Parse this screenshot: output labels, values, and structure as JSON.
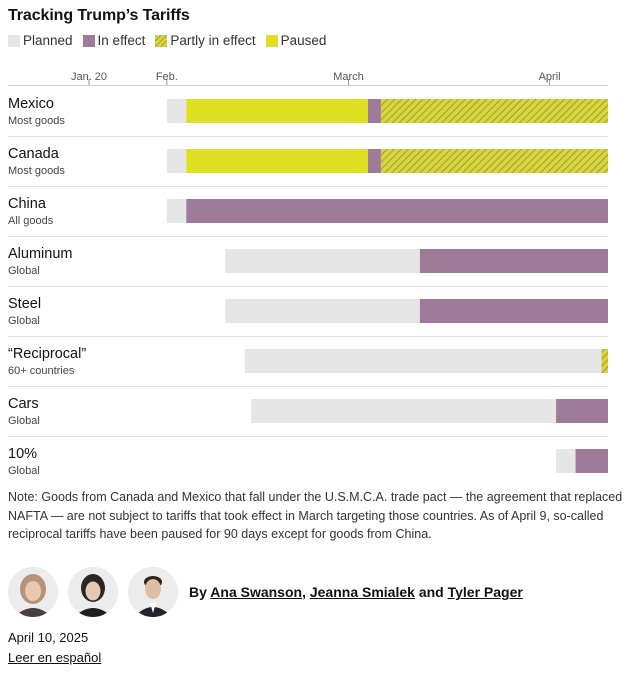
{
  "title": "Tracking Trump’s Tariffs",
  "legend": [
    {
      "label": "Planned",
      "key": "planned"
    },
    {
      "label": "In effect",
      "key": "in_effect"
    },
    {
      "label": "Partly in effect",
      "key": "partly"
    },
    {
      "label": "Paused",
      "key": "paused"
    }
  ],
  "colors": {
    "planned": "#e6e6e6",
    "in_effect": "#9d7b99",
    "partly": "#d8d633",
    "partly_stripe": "#8a7d6a",
    "paused": "#dfe022",
    "divider": "#e2e2e2"
  },
  "chart_data": {
    "type": "bar",
    "subtype": "timeline",
    "title": "Tracking Trump’s Tariffs",
    "x_axis": {
      "type": "date",
      "range": [
        "2025-01-20",
        "2025-04-10"
      ],
      "ticks": [
        {
          "date": "2025-01-20",
          "label": "Jan. 20"
        },
        {
          "date": "2025-02-01",
          "label": "Feb."
        },
        {
          "date": "2025-03-01",
          "label": "March"
        },
        {
          "date": "2025-04-01",
          "label": "April"
        }
      ]
    },
    "rows": [
      {
        "name": "Mexico",
        "sub": "Most goods",
        "segments": [
          {
            "status": "planned",
            "start": "2025-02-01",
            "end": "2025-02-04"
          },
          {
            "status": "paused",
            "start": "2025-02-04",
            "end": "2025-03-04"
          },
          {
            "status": "in_effect",
            "start": "2025-03-04",
            "end": "2025-03-06"
          },
          {
            "status": "partly",
            "start": "2025-03-06",
            "end": "2025-04-10"
          }
        ]
      },
      {
        "name": "Canada",
        "sub": "Most goods",
        "segments": [
          {
            "status": "planned",
            "start": "2025-02-01",
            "end": "2025-02-04"
          },
          {
            "status": "paused",
            "start": "2025-02-04",
            "end": "2025-03-04"
          },
          {
            "status": "in_effect",
            "start": "2025-03-04",
            "end": "2025-03-06"
          },
          {
            "status": "partly",
            "start": "2025-03-06",
            "end": "2025-04-10"
          }
        ]
      },
      {
        "name": "China",
        "sub": "All goods",
        "segments": [
          {
            "status": "planned",
            "start": "2025-02-01",
            "end": "2025-02-04"
          },
          {
            "status": "in_effect",
            "start": "2025-02-04",
            "end": "2025-04-10"
          }
        ]
      },
      {
        "name": "Aluminum",
        "sub": "Global",
        "segments": [
          {
            "status": "planned",
            "start": "2025-02-10",
            "end": "2025-03-12"
          },
          {
            "status": "in_effect",
            "start": "2025-03-12",
            "end": "2025-04-10"
          }
        ]
      },
      {
        "name": "Steel",
        "sub": "Global",
        "segments": [
          {
            "status": "planned",
            "start": "2025-02-10",
            "end": "2025-03-12"
          },
          {
            "status": "in_effect",
            "start": "2025-03-12",
            "end": "2025-04-10"
          }
        ]
      },
      {
        "name": "“Reciprocal”",
        "sub": "60+ countries",
        "segments": [
          {
            "status": "planned",
            "start": "2025-02-13",
            "end": "2025-04-09"
          },
          {
            "status": "partly",
            "start": "2025-04-09",
            "end": "2025-04-10"
          }
        ]
      },
      {
        "name": "Cars",
        "sub": "Global",
        "segments": [
          {
            "status": "planned",
            "start": "2025-02-14",
            "end": "2025-04-02"
          },
          {
            "status": "in_effect",
            "start": "2025-04-02",
            "end": "2025-04-10"
          }
        ]
      },
      {
        "name": "10%",
        "sub": "Global",
        "segments": [
          {
            "status": "planned",
            "start": "2025-04-02",
            "end": "2025-04-05"
          },
          {
            "status": "in_effect",
            "start": "2025-04-05",
            "end": "2025-04-10"
          }
        ]
      }
    ]
  },
  "note": "Note: Goods from Canada and Mexico that fall under the U.S.M.C.A. trade pact — the agreement that replaced NAFTA — are not subject to tariffs that took effect in March targeting those countries. As of April 9, so-called reciprocal tariffs have been paused for 90 days except for goods from China.",
  "byline": {
    "prefix": "By",
    "authors": [
      "Ana Swanson",
      "Jeanna Smialek",
      "Tyler Pager"
    ],
    "sep1": ",",
    "and": "and"
  },
  "date": "April 10, 2025",
  "language_link": "Leer en español"
}
